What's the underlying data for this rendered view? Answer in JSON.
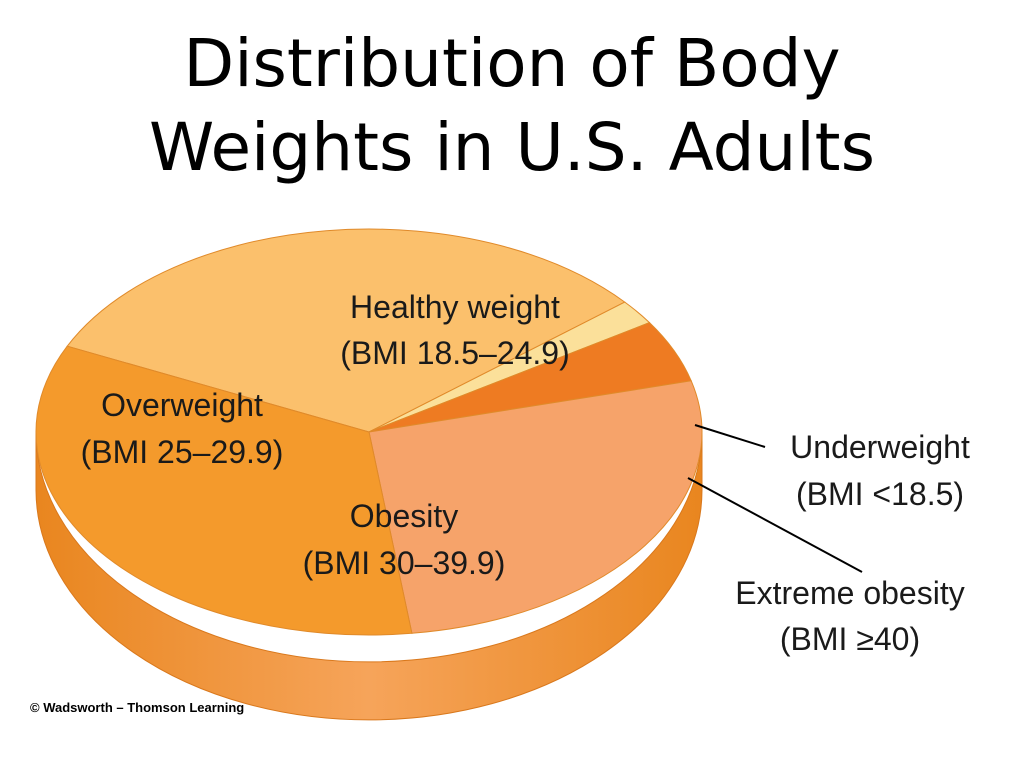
{
  "title_line1": "Distribution of Body",
  "title_line2": "Weights in U.S. Adults",
  "credit": "© Wadsworth – Thomson Learning",
  "chart_data": {
    "type": "pie",
    "title": "Distribution of Body Weights in U.S. Adults",
    "slices": [
      {
        "label": "Healthy weight",
        "sublabel": "(BMI 18.5–24.9)",
        "value": 32,
        "color": "#fbc06c"
      },
      {
        "label": "Underweight",
        "sublabel": "(BMI <18.5)",
        "value": 2,
        "color": "#fbe09a"
      },
      {
        "label": "Extreme obesity",
        "sublabel": "(BMI ≥40)",
        "value": 5,
        "color": "#ee7b22"
      },
      {
        "label": "Obesity",
        "sublabel": "(BMI 30–39.9)",
        "value": 27,
        "color": "#f6a36a"
      },
      {
        "label": "Overweight",
        "sublabel": "(BMI 25–29.9)",
        "value": 34,
        "color": "#f49a2c"
      }
    ]
  }
}
